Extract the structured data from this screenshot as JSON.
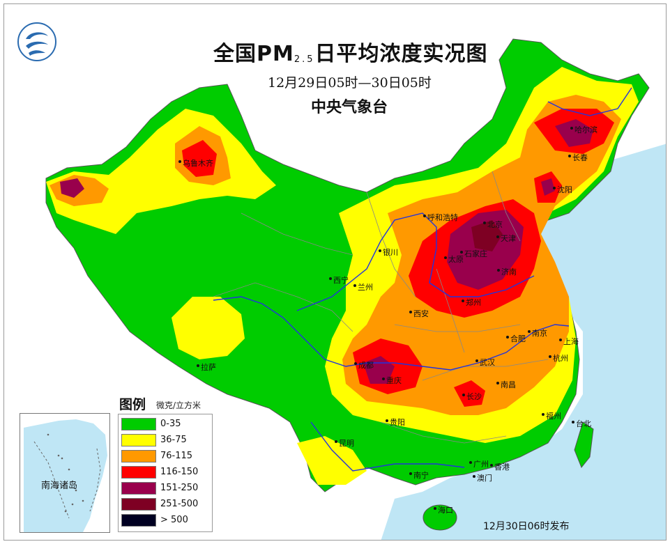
{
  "header": {
    "title_main": "全国PM",
    "title_sub": "2.5",
    "title_rest": "日平均浓度实况图",
    "period": "12月29日05时—30日05时",
    "agency": "中央气象台"
  },
  "cities": [
    {
      "id": "harbin",
      "name": "哈尔滨"
    },
    {
      "id": "changchun",
      "name": "长春"
    },
    {
      "id": "shenyang",
      "name": "沈阳"
    },
    {
      "id": "urumqi",
      "name": "乌鲁木齐"
    },
    {
      "id": "hohhot",
      "name": "呼和浩特"
    },
    {
      "id": "beijing",
      "name": "北京"
    },
    {
      "id": "tianjin",
      "name": "天津"
    },
    {
      "id": "shijiazhuang",
      "name": "石家庄"
    },
    {
      "id": "taiyuan",
      "name": "太原"
    },
    {
      "id": "jinan",
      "name": "济南"
    },
    {
      "id": "yinchuan",
      "name": "银川"
    },
    {
      "id": "xining",
      "name": "西宁"
    },
    {
      "id": "lanzhou",
      "name": "兰州"
    },
    {
      "id": "xian",
      "name": "西安"
    },
    {
      "id": "zhengzhou",
      "name": "郑州"
    },
    {
      "id": "hefei",
      "name": "合肥"
    },
    {
      "id": "nanjing",
      "name": "南京"
    },
    {
      "id": "shanghai",
      "name": "上海"
    },
    {
      "id": "hangzhou",
      "name": "杭州"
    },
    {
      "id": "wuhan",
      "name": "武汉"
    },
    {
      "id": "chengdu",
      "name": "成都"
    },
    {
      "id": "chongqing",
      "name": "重庆"
    },
    {
      "id": "lhasa",
      "name": "拉萨"
    },
    {
      "id": "nanchang",
      "name": "南昌"
    },
    {
      "id": "changsha",
      "name": "长沙"
    },
    {
      "id": "guiyang",
      "name": "贵阳"
    },
    {
      "id": "kunming",
      "name": "昆明"
    },
    {
      "id": "fuzhou",
      "name": "福州"
    },
    {
      "id": "taipei",
      "name": "台北"
    },
    {
      "id": "nanning",
      "name": "南宁"
    },
    {
      "id": "guangzhou",
      "name": "广州"
    },
    {
      "id": "hongkong",
      "name": "香港"
    },
    {
      "id": "macau",
      "name": "澳门"
    },
    {
      "id": "haikou",
      "name": "海口"
    }
  ],
  "legend": {
    "title": "图例",
    "unit": "微克/立方米",
    "items": [
      {
        "label": "0-35",
        "color": "#00cc00"
      },
      {
        "label": "36-75",
        "color": "#ffff00"
      },
      {
        "label": "76-115",
        "color": "#ff9900"
      },
      {
        "label": "116-150",
        "color": "#ff0000"
      },
      {
        "label": "151-250",
        "color": "#99004c"
      },
      {
        "label": "251-500",
        "color": "#7e0023"
      },
      {
        "label": "> 500",
        "color": "#000022"
      }
    ]
  },
  "inset": {
    "label": "南海诸岛"
  },
  "footer": {
    "issued": "12月30日06时发布"
  },
  "colors": {
    "sea": "#bfe6f5",
    "neighbor": "#ffffff",
    "river": "#2233dd",
    "boundary": "#888888"
  }
}
